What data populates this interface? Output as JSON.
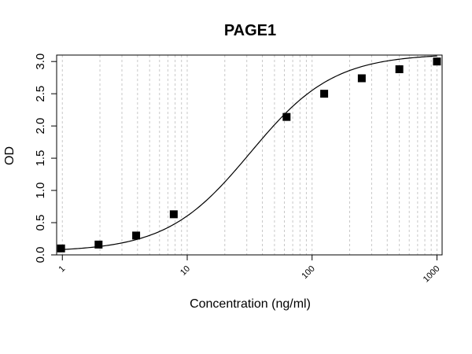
{
  "chart_data": {
    "type": "scatter",
    "title": "PAGE1",
    "xlabel": "Concentration (ng/ml)",
    "ylabel": "OD",
    "x_scale": "log",
    "xlim": [
      0.9,
      1100
    ],
    "ylim": [
      0,
      3.1
    ],
    "grid": "vertical dotted at log minor ticks",
    "x_tick_labels": [
      "1",
      "10",
      "100",
      "1000"
    ],
    "x_ticks": [
      1,
      10,
      100,
      1000
    ],
    "y_tick_labels": [
      "0.0",
      "0.5",
      "1.0",
      "1.5",
      "2.0",
      "2.5",
      "3.0"
    ],
    "y_ticks": [
      0,
      0.5,
      1.0,
      1.5,
      2.0,
      2.5,
      3.0
    ],
    "points": [
      {
        "x": 0.977,
        "y": 0.1
      },
      {
        "x": 1.95,
        "y": 0.16
      },
      {
        "x": 3.9,
        "y": 0.3
      },
      {
        "x": 7.8,
        "y": 0.63
      },
      {
        "x": 62.5,
        "y": 2.14
      },
      {
        "x": 125,
        "y": 2.5
      },
      {
        "x": 250,
        "y": 2.74
      },
      {
        "x": 500,
        "y": 2.88
      },
      {
        "x": 1000,
        "y": 3.0
      }
    ],
    "fit": {
      "model": "4PL",
      "bottom": 0.05,
      "top": 3.12,
      "ec50": 32,
      "hill": 1.3
    }
  }
}
